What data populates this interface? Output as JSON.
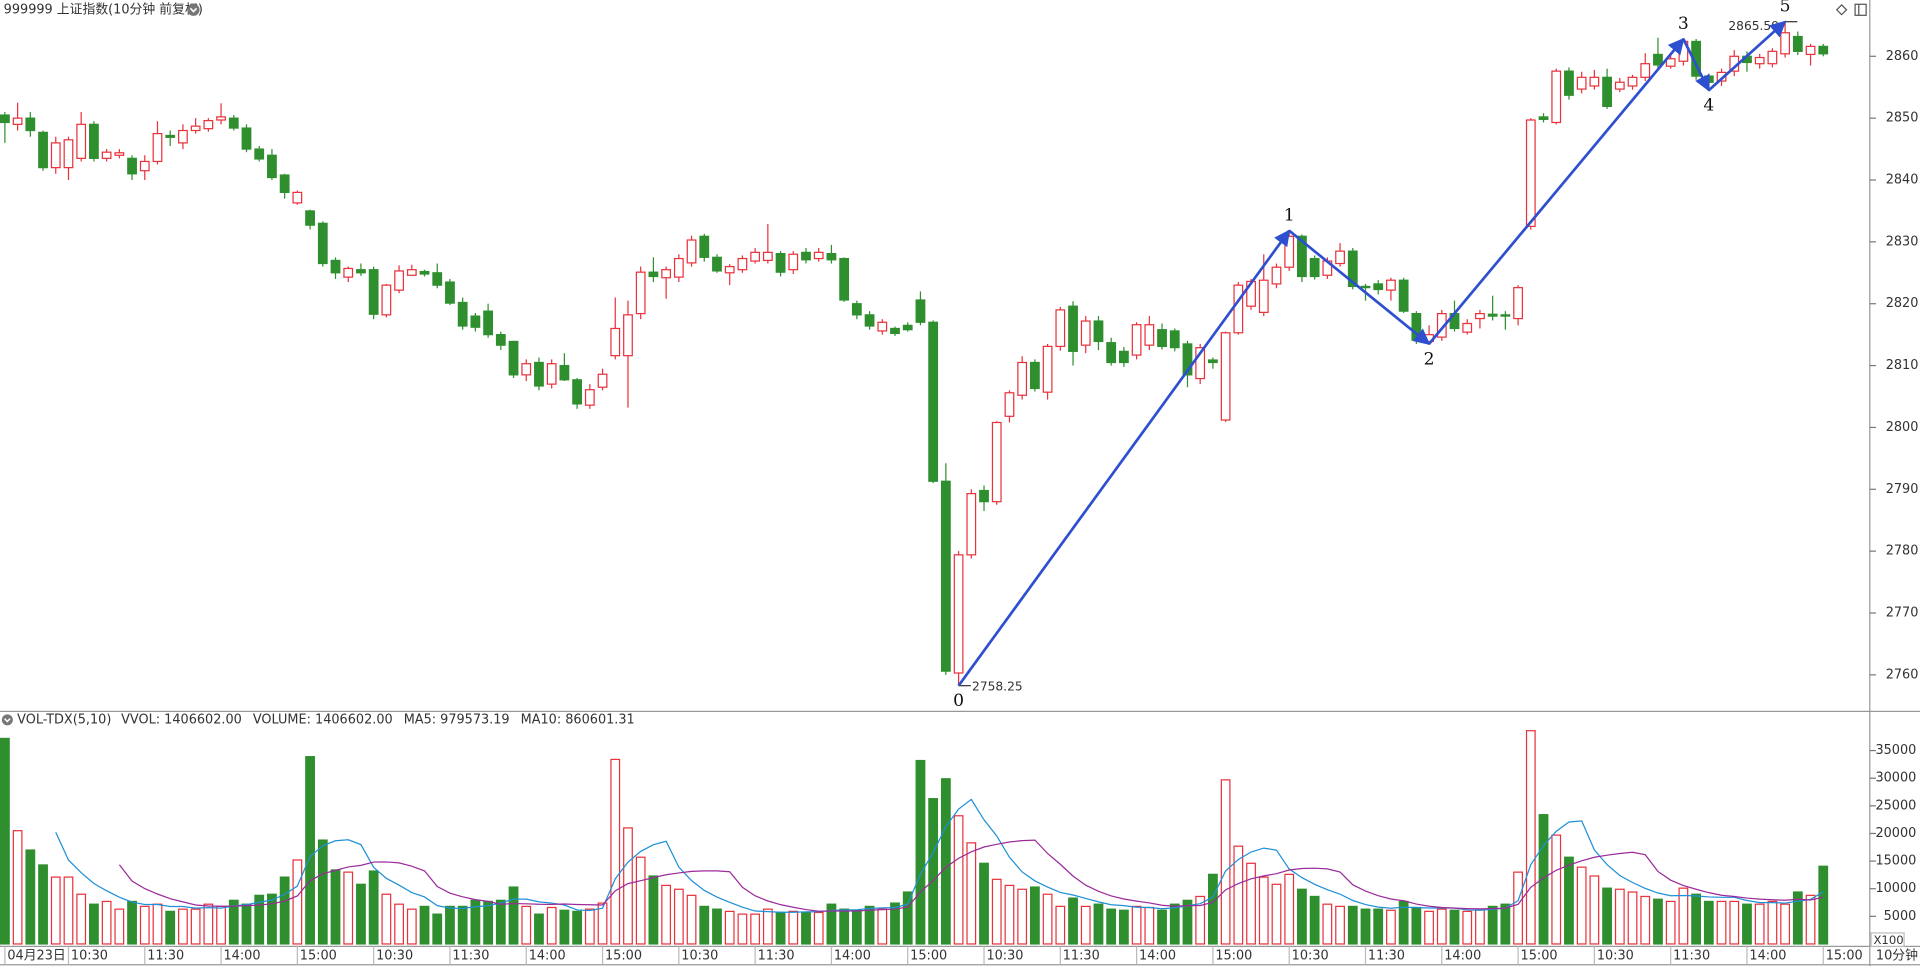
{
  "chart_data": [
    {
      "type": "candlestick",
      "title": "999999 上证指数(10分钟 前复权)",
      "interval_label": "10分钟",
      "up_color": "#e8323c",
      "down_color": "#2f8f2f",
      "ylim": [
        2754.3,
        2869.1
      ],
      "yticks": [
        2760,
        2770,
        2780,
        2790,
        2800,
        2810,
        2820,
        2830,
        2840,
        2850,
        2860
      ],
      "categories": [
        "04月23日",
        null,
        null,
        null,
        null,
        "10:30",
        null,
        null,
        null,
        null,
        null,
        "11:30",
        null,
        null,
        null,
        null,
        null,
        "14:00",
        null,
        null,
        null,
        null,
        null,
        "15:00",
        null,
        null,
        null,
        null,
        null,
        "10:30",
        null,
        null,
        null,
        null,
        null,
        "11:30",
        null,
        null,
        null,
        null,
        null,
        "14:00",
        null,
        null,
        null,
        null,
        null,
        "15:00",
        null,
        null,
        null,
        null,
        null,
        "10:30",
        null,
        null,
        null,
        null,
        null,
        "11:30",
        null,
        null,
        null,
        null,
        null,
        "14:00",
        null,
        null,
        null,
        null,
        null,
        "15:00",
        null,
        null,
        null,
        null,
        null,
        "10:30",
        null,
        null,
        null,
        null,
        null,
        "11:30",
        null,
        null,
        null,
        null,
        null,
        "14:00",
        null,
        null,
        null,
        null,
        null,
        "15:00",
        null,
        null,
        null,
        null,
        null,
        "10:30",
        null,
        null,
        null,
        null,
        null,
        "11:30",
        null,
        null,
        null,
        null,
        null,
        "14:00",
        null,
        null,
        null,
        null,
        null,
        "15:00",
        null,
        null,
        null,
        null,
        null,
        "10:30",
        null,
        null,
        null,
        null,
        null,
        "11:30",
        null,
        null,
        null,
        null,
        null,
        "14:00",
        null,
        null,
        null,
        null,
        null,
        "15:00"
      ],
      "ohlc": [
        [
          2850.5,
          2851,
          2846,
          2849.3
        ],
        [
          2849,
          2852.5,
          2848,
          2850
        ],
        [
          2850,
          2851,
          2847,
          2848
        ],
        [
          2847.7,
          2848,
          2841.5,
          2842
        ],
        [
          2842,
          2847,
          2841,
          2846
        ],
        [
          2842,
          2847,
          2840,
          2846.5
        ],
        [
          2843.5,
          2851,
          2843,
          2849
        ],
        [
          2849,
          2849.5,
          2843,
          2843.5
        ],
        [
          2843.5,
          2845,
          2843,
          2844.5
        ],
        [
          2844,
          2845,
          2843.5,
          2844.4
        ],
        [
          2843.5,
          2844,
          2840,
          2841
        ],
        [
          2841.5,
          2844,
          2840,
          2843
        ],
        [
          2843,
          2849.5,
          2842.5,
          2847.5
        ],
        [
          2847.2,
          2848,
          2845.5,
          2846.9
        ],
        [
          2846,
          2849,
          2845,
          2848
        ],
        [
          2848,
          2850,
          2847.5,
          2848.7
        ],
        [
          2848.3,
          2850,
          2847.8,
          2849.6
        ],
        [
          2849.7,
          2852.4,
          2849,
          2850.2
        ],
        [
          2850,
          2850.5,
          2848,
          2848.4
        ],
        [
          2848.4,
          2849,
          2844.5,
          2845
        ],
        [
          2845,
          2845.5,
          2843,
          2843.4
        ],
        [
          2844,
          2845,
          2840,
          2840.4
        ],
        [
          2840.8,
          2841,
          2837,
          2838
        ],
        [
          2836.3,
          2838.3,
          2836,
          2838
        ],
        [
          2835,
          2835.2,
          2832,
          2832.7
        ],
        [
          2833,
          2833.3,
          2826,
          2826.5
        ],
        [
          2827,
          2827.5,
          2824,
          2825
        ],
        [
          2824.3,
          2826,
          2823.5,
          2825.7
        ],
        [
          2825.5,
          2826.5,
          2824.5,
          2825
        ],
        [
          2825.5,
          2826,
          2817.5,
          2818.3
        ],
        [
          2818.2,
          2823.2,
          2817.8,
          2823
        ],
        [
          2822.2,
          2826.2,
          2821.7,
          2825.3
        ],
        [
          2824.6,
          2826.3,
          2824.5,
          2825.5
        ],
        [
          2825.2,
          2825.5,
          2824.4,
          2824.8
        ],
        [
          2825,
          2826.5,
          2822.5,
          2823
        ],
        [
          2823.5,
          2824,
          2819.8,
          2820.1
        ],
        [
          2820.2,
          2821,
          2815.8,
          2816.4
        ],
        [
          2818,
          2818.5,
          2815.5,
          2816.2
        ],
        [
          2818.8,
          2820,
          2814.5,
          2815
        ],
        [
          2815,
          2815.5,
          2812.5,
          2813.3
        ],
        [
          2813.9,
          2814,
          2808,
          2808.5
        ],
        [
          2808.5,
          2811,
          2807.5,
          2810.3
        ],
        [
          2810.5,
          2811.3,
          2806,
          2806.7
        ],
        [
          2807,
          2811,
          2806.3,
          2810.3
        ],
        [
          2810,
          2812,
          2807.5,
          2807.7
        ],
        [
          2807.7,
          2808,
          2803,
          2803.8
        ],
        [
          2803.6,
          2807,
          2803,
          2806.1
        ],
        [
          2806.5,
          2809.5,
          2806,
          2808.6
        ],
        [
          2811.6,
          2821,
          2811,
          2816
        ],
        [
          2811.6,
          2820.5,
          2803.2,
          2818.2
        ],
        [
          2818.4,
          2826,
          2817.5,
          2825.1
        ],
        [
          2825.1,
          2827.5,
          2823.5,
          2824.4
        ],
        [
          2824.2,
          2826,
          2820.8,
          2825.5
        ],
        [
          2824.3,
          2828,
          2823.5,
          2827.3
        ],
        [
          2826.6,
          2831,
          2826,
          2830.3
        ],
        [
          2830.9,
          2831.3,
          2826.8,
          2827.5
        ],
        [
          2827.5,
          2828,
          2825,
          2825.3
        ],
        [
          2825,
          2826.4,
          2823,
          2826
        ],
        [
          2825.5,
          2827.8,
          2825,
          2827.3
        ],
        [
          2826.9,
          2829,
          2826.5,
          2828.3
        ],
        [
          2827,
          2832.9,
          2826.5,
          2828.3
        ],
        [
          2828.1,
          2828.5,
          2824.4,
          2825.1
        ],
        [
          2825.5,
          2828.5,
          2824.8,
          2828
        ],
        [
          2828.3,
          2829,
          2826.5,
          2827.1
        ],
        [
          2827.3,
          2829,
          2826.8,
          2828.3
        ],
        [
          2828.1,
          2829.5,
          2826.5,
          2827.1
        ],
        [
          2827.3,
          2827.5,
          2820.3,
          2820.6
        ],
        [
          2820,
          2820.5,
          2817.5,
          2818.2
        ],
        [
          2818.2,
          2818.8,
          2815.8,
          2816.4
        ],
        [
          2815.6,
          2817.5,
          2815,
          2817
        ],
        [
          2816,
          2816.3,
          2814.8,
          2815.2
        ],
        [
          2816.5,
          2817,
          2815.5,
          2815.8
        ],
        [
          2820.6,
          2822,
          2816.5,
          2817
        ],
        [
          2817,
          2817.3,
          2791,
          2791.3
        ],
        [
          2791.3,
          2794.2,
          2760,
          2760.6
        ],
        [
          2760.3,
          2780,
          2758.25,
          2779.4
        ],
        [
          2779.4,
          2790,
          2778.8,
          2789.3
        ],
        [
          2789.8,
          2790.6,
          2786.5,
          2788
        ],
        [
          2788,
          2801,
          2787.5,
          2800.8
        ],
        [
          2801.8,
          2806,
          2800.8,
          2805.6
        ],
        [
          2805.2,
          2811.5,
          2804.5,
          2810.5
        ],
        [
          2810.5,
          2811,
          2805.8,
          2806.3
        ],
        [
          2805.7,
          2813.5,
          2804.5,
          2813.1
        ],
        [
          2813.1,
          2819.5,
          2812.4,
          2819
        ],
        [
          2819.6,
          2820.4,
          2810,
          2812.3
        ],
        [
          2813.3,
          2818,
          2812,
          2817.2
        ],
        [
          2817.2,
          2818,
          2812.5,
          2813.9
        ],
        [
          2813.7,
          2814.5,
          2810,
          2810.5
        ],
        [
          2812.3,
          2813,
          2809.8,
          2810.5
        ],
        [
          2811.7,
          2817,
          2811,
          2816.6
        ],
        [
          2813.3,
          2818,
          2812.5,
          2816.6
        ],
        [
          2815.8,
          2816.8,
          2812.6,
          2813.1
        ],
        [
          2815.6,
          2816,
          2812.3,
          2812.9
        ],
        [
          2813.5,
          2814,
          2806.5,
          2808.5
        ],
        [
          2807.9,
          2813.5,
          2807,
          2812.9
        ],
        [
          2810.9,
          2811.3,
          2809.5,
          2810.5
        ],
        [
          2801.2,
          2815.5,
          2800.9,
          2815.3
        ],
        [
          2815.3,
          2823.5,
          2815,
          2823
        ],
        [
          2819.6,
          2824,
          2819,
          2823.6
        ],
        [
          2818.6,
          2828,
          2818,
          2823.8
        ],
        [
          2823.2,
          2826.5,
          2822.5,
          2825.9
        ],
        [
          2825.9,
          2831.8,
          2825.3,
          2830.9
        ],
        [
          2830.9,
          2831.2,
          2823.5,
          2824.4
        ],
        [
          2827.3,
          2827.8,
          2823.9,
          2824.4
        ],
        [
          2824.6,
          2827.5,
          2824,
          2826.9
        ],
        [
          2826.5,
          2829.8,
          2826,
          2828.5
        ],
        [
          2828.5,
          2829,
          2822.3,
          2822.8
        ],
        [
          2822.8,
          2823.2,
          2820.5,
          2822.6
        ],
        [
          2823.2,
          2823.8,
          2821.5,
          2822.3
        ],
        [
          2822.2,
          2824.2,
          2820.5,
          2823.8
        ],
        [
          2823.8,
          2824.2,
          2818.5,
          2818.8
        ],
        [
          2818.4,
          2818.8,
          2813.5,
          2814.1
        ],
        [
          2813.9,
          2816.5,
          2813.5,
          2815
        ],
        [
          2814.6,
          2819,
          2814,
          2818.4
        ],
        [
          2818.4,
          2820.5,
          2815.5,
          2816
        ],
        [
          2815.4,
          2817.5,
          2815,
          2816.8
        ],
        [
          2817.6,
          2819,
          2816,
          2818.4
        ],
        [
          2818.3,
          2821.3,
          2817.3,
          2818
        ],
        [
          2818.2,
          2818.8,
          2815.8,
          2818
        ],
        [
          2817.6,
          2823,
          2816.5,
          2822.6
        ],
        [
          2832.5,
          2850,
          2832,
          2849.7
        ],
        [
          2850.2,
          2850.8,
          2849.3,
          2849.8
        ],
        [
          2849.3,
          2858,
          2849,
          2857.6
        ],
        [
          2857.6,
          2858.2,
          2853,
          2853.7
        ],
        [
          2854.7,
          2857.5,
          2854,
          2856.6
        ],
        [
          2855.2,
          2857.8,
          2854.6,
          2856.6
        ],
        [
          2856.6,
          2858,
          2851.5,
          2851.9
        ],
        [
          2854.7,
          2856.5,
          2854.2,
          2855.8
        ],
        [
          2855.2,
          2857,
          2854.6,
          2856.6
        ],
        [
          2856.6,
          2860.5,
          2856,
          2858.8
        ],
        [
          2860.3,
          2863,
          2858,
          2858.6
        ],
        [
          2858.4,
          2860.5,
          2858,
          2859.6
        ],
        [
          2859.2,
          2862.8,
          2858.5,
          2862.4
        ],
        [
          2862.4,
          2862.8,
          2856.2,
          2856.8
        ],
        [
          2856.8,
          2857.2,
          2854.5,
          2855.8
        ],
        [
          2856,
          2858,
          2855.2,
          2857.4
        ],
        [
          2857.6,
          2861,
          2856.8,
          2860
        ],
        [
          2860,
          2860.8,
          2857.5,
          2859
        ],
        [
          2858.8,
          2860.4,
          2858,
          2859.8
        ],
        [
          2858.8,
          2861.3,
          2858.2,
          2860.8
        ],
        [
          2860.4,
          2865.59,
          2859.8,
          2863.8
        ],
        [
          2863.2,
          2864,
          2860.2,
          2860.8
        ],
        [
          2860.3,
          2862,
          2858.5,
          2861.6
        ],
        [
          2861.6,
          2862,
          2860,
          2860.4
        ]
      ],
      "annotations": [
        {
          "index": 75,
          "value": 2758.25
        },
        {
          "index": 140,
          "value": 2865.59
        }
      ],
      "wave_color": "#2e4fd0",
      "waves": [
        {
          "label": "0",
          "index": 75,
          "price": 2758.25
        },
        {
          "label": "1",
          "index": 101,
          "price": 2831.8
        },
        {
          "label": "2",
          "index": 112,
          "price": 2813.5
        },
        {
          "label": "3",
          "index": 132,
          "price": 2862.8
        },
        {
          "label": "4",
          "index": 134,
          "price": 2854.5
        },
        {
          "label": "5",
          "index": 140,
          "price": 2865.59
        }
      ]
    },
    {
      "type": "bar",
      "title": "VOL-TDX(5,10)",
      "unit_label": "X100",
      "legend": [
        {
          "text": "VVOL: 1406602.00",
          "color": "#333333"
        },
        {
          "text": "VOLUME: 1406602.00",
          "color": "#1e78c8"
        },
        {
          "text": "MA5: 979573.19",
          "color": "#1e78c8"
        },
        {
          "text": "MA10: 860601.31",
          "color": "#9b2a9b"
        }
      ],
      "ma": [
        {
          "period": 5,
          "color": "#1e90d8"
        },
        {
          "period": 10,
          "color": "#9b2a9b"
        }
      ],
      "ylim": [
        0,
        39000
      ],
      "yticks": [
        5000,
        10000,
        15000,
        20000,
        25000,
        30000,
        35000
      ],
      "values": [
        37200,
        20500,
        17000,
        14300,
        12100,
        12100,
        9000,
        7200,
        7700,
        6300,
        7700,
        6800,
        7200,
        5900,
        6300,
        6300,
        7200,
        6800,
        7900,
        7200,
        8800,
        9000,
        12100,
        15200,
        33900,
        18800,
        13400,
        13000,
        10800,
        13200,
        9000,
        7200,
        6300,
        6800,
        5400,
        6800,
        6800,
        7900,
        7700,
        7900,
        10300,
        6800,
        5400,
        6600,
        6100,
        5900,
        6300,
        7400,
        33400,
        21000,
        15700,
        12300,
        10600,
        9900,
        8800,
        6800,
        6300,
        5900,
        5400,
        5400,
        6300,
        5700,
        5900,
        5700,
        5700,
        7200,
        6300,
        6100,
        6800,
        6300,
        7400,
        9400,
        33200,
        26300,
        29900,
        23200,
        18300,
        14600,
        11700,
        10600,
        9900,
        10300,
        9000,
        6800,
        8300,
        6800,
        7200,
        6300,
        6100,
        6800,
        6600,
        6100,
        7200,
        7900,
        8600,
        12600,
        29700,
        17700,
        14600,
        12100,
        10800,
        12600,
        9900,
        8600,
        7200,
        6800,
        6800,
        6300,
        6300,
        6100,
        7700,
        6600,
        5900,
        6300,
        6100,
        5900,
        6300,
        6800,
        7200,
        13000,
        38600,
        23400,
        19700,
        15700,
        13900,
        12300,
        10100,
        9900,
        9400,
        8600,
        8100,
        7700,
        10100,
        9000,
        7700,
        7700,
        7700,
        7200,
        7200,
        7700,
        7200,
        9400,
        8800,
        14066.02
      ]
    }
  ]
}
